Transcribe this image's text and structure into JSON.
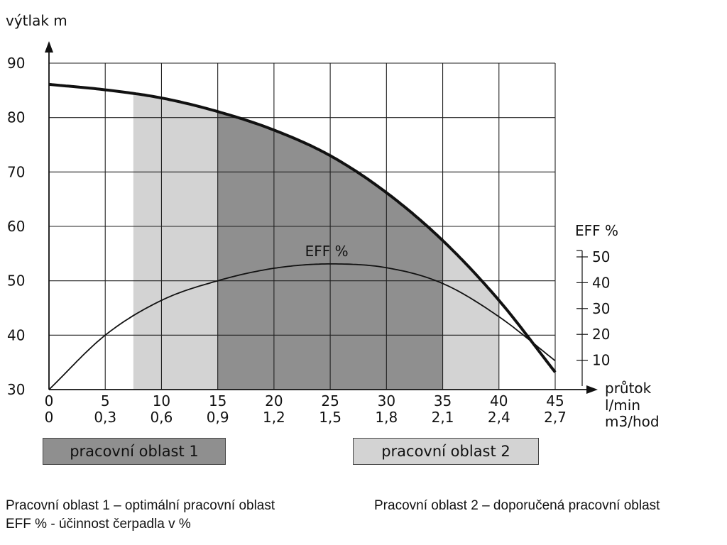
{
  "chart_data": {
    "type": "line",
    "ylabel": "výtlak  m",
    "y_axis": {
      "ticks": [
        30,
        40,
        50,
        60,
        70,
        80,
        90
      ],
      "ylim": [
        30,
        90
      ]
    },
    "x_axis": {
      "ticks": [
        0,
        5,
        10,
        15,
        20,
        25,
        30,
        35,
        40,
        45
      ],
      "xlim": [
        0,
        45
      ],
      "label": "průtok",
      "unit_primary": "l/min",
      "secondary_ticks": [
        "0",
        "0,3",
        "0,6",
        "0,9",
        "1,2",
        "1,5",
        "1,8",
        "2,1",
        "2,4",
        "2,7"
      ],
      "unit_secondary": "m3/hod"
    },
    "y2_axis": {
      "title": "EFF %",
      "ticks": [
        10,
        20,
        30,
        40,
        50
      ]
    },
    "grid": true,
    "series": [
      {
        "name": "výtlak",
        "x": [
          0,
          5,
          10,
          15,
          20,
          25,
          30,
          35,
          40,
          45
        ],
        "y": [
          86.1,
          85.1,
          83.6,
          81.1,
          77.7,
          73.0,
          66.2,
          57.4,
          46.4,
          33.2
        ]
      },
      {
        "name": "EFF %",
        "x": [
          0,
          5,
          10,
          15,
          20,
          25,
          30,
          35,
          40,
          45
        ],
        "y": [
          30,
          40,
          46.4,
          50.0,
          52.3,
          53.1,
          52.4,
          49.5,
          43.4,
          35.3
        ]
      }
    ],
    "shaded_regions": [
      {
        "label": "pracovní oblast 2",
        "x_range": [
          7.5,
          15
        ],
        "color": "#d3d3d3"
      },
      {
        "label": "pracovní oblast 1",
        "x_range": [
          15,
          35
        ],
        "color": "#8f8f8f"
      },
      {
        "label": "pracovní oblast 2",
        "x_range": [
          35,
          40
        ],
        "color": "#d3d3d3"
      }
    ],
    "annotations": [
      {
        "text": "EFF %",
        "x": 25,
        "y": 53.1
      }
    ]
  },
  "legend": {
    "zone1": "pracovní oblast 1",
    "zone2": "pracovní oblast 2"
  },
  "notes": {
    "zone1": "Pracovní oblast 1 – optimální pracovní oblast",
    "zone2": "Pracovní oblast 2 – doporučená pracovní oblast",
    "eff": "EFF % - účinnost čerpadla v %"
  }
}
